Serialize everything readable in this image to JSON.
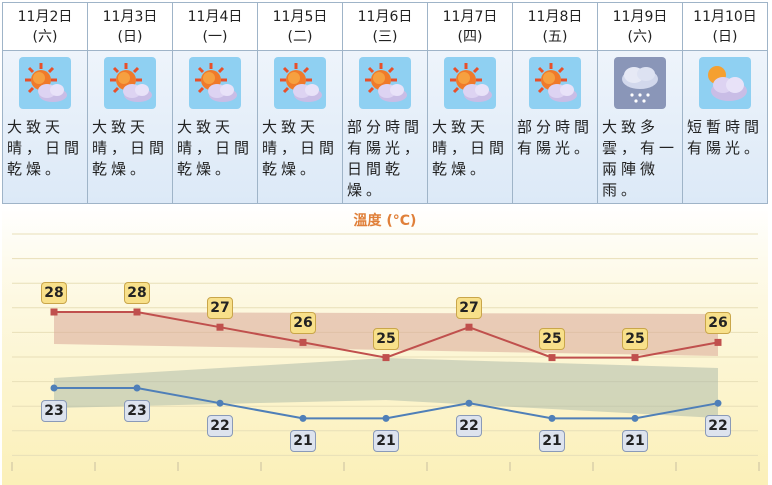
{
  "days": [
    {
      "date": "11月2日",
      "weekday": "(六)",
      "desc": "大致天晴，日間乾燥。",
      "icon": "sunny-periods-icon",
      "max": 28,
      "min": 23
    },
    {
      "date": "11月3日",
      "weekday": "(日)",
      "desc": "大致天晴，日間乾燥。",
      "icon": "sunny-periods-icon",
      "max": 28,
      "min": 23
    },
    {
      "date": "11月4日",
      "weekday": "(一)",
      "desc": "大致天晴，日間乾燥。",
      "icon": "sunny-periods-icon",
      "max": 27,
      "min": 22
    },
    {
      "date": "11月5日",
      "weekday": "(二)",
      "desc": "大致天晴，日間乾燥。",
      "icon": "sunny-periods-icon",
      "max": 26,
      "min": 21
    },
    {
      "date": "11月6日",
      "weekday": "(三)",
      "desc": "部分時間有陽光，日間乾燥。",
      "icon": "sunny-periods-icon",
      "max": 25,
      "min": 21
    },
    {
      "date": "11月7日",
      "weekday": "(四)",
      "desc": "大致天晴，日間乾燥。",
      "icon": "sunny-periods-icon",
      "max": 27,
      "min": 22
    },
    {
      "date": "11月8日",
      "weekday": "(五)",
      "desc": "部分時間有陽光。",
      "icon": "sunny-periods-icon",
      "max": 25,
      "min": 21
    },
    {
      "date": "11月9日",
      "weekday": "(六)",
      "desc": "大致多雲，有一兩陣微雨。",
      "icon": "cloudy-drizzle-icon",
      "max": 25,
      "min": 21
    },
    {
      "date": "11月10日",
      "weekday": "(日)",
      "desc": "短暫時間有陽光。",
      "icon": "cloudy-sunny-icon",
      "max": 26,
      "min": 22
    }
  ],
  "chart_data": {
    "type": "line",
    "title": "溫度 (°C)",
    "categories": [
      "11月2日",
      "11月3日",
      "11月4日",
      "11月5日",
      "11月6日",
      "11月7日",
      "11月8日",
      "11月9日",
      "11月10日"
    ],
    "series": [
      {
        "values": [
          28,
          28,
          27,
          26,
          25,
          27,
          25,
          25,
          26
        ],
        "color": "#c0504d"
      },
      {
        "values": [
          23,
          23,
          22,
          21,
          21,
          22,
          21,
          21,
          22
        ],
        "color": "#4f7fb8"
      }
    ],
    "ylim": [
      18,
      33
    ],
    "grid": true
  }
}
